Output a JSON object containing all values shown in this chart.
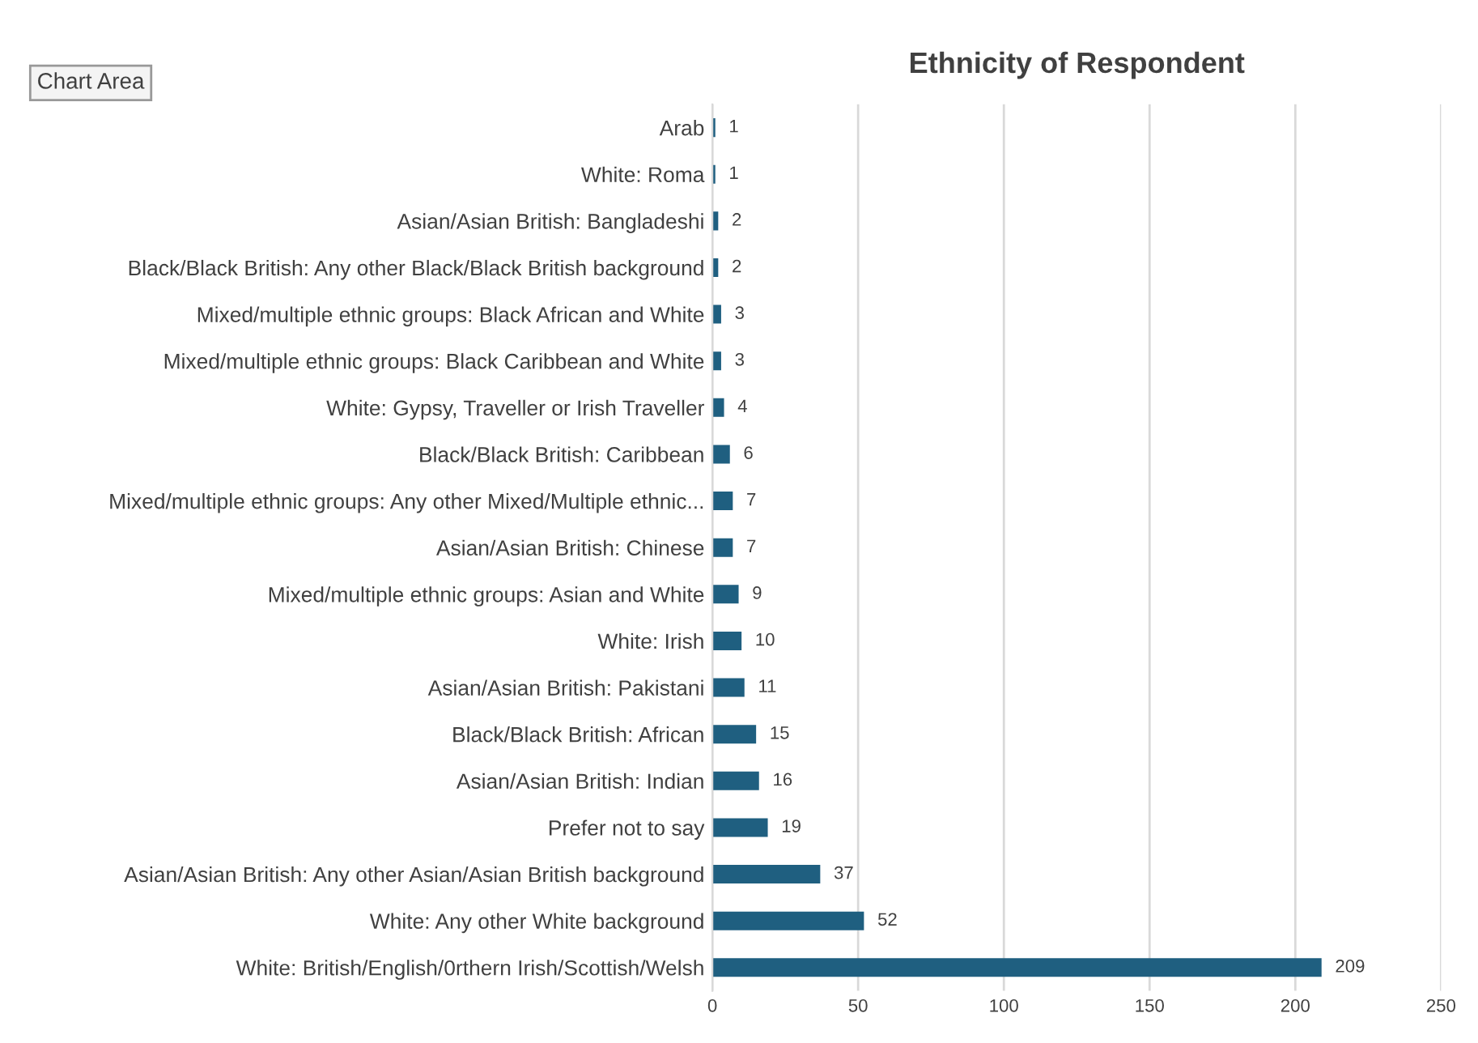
{
  "chart_data": {
    "type": "bar",
    "orientation": "horizontal",
    "title": "Ethnicity of Respondent",
    "categories": [
      "Arab",
      "White: Roma",
      "Asian/Asian British: Bangladeshi",
      "Black/Black British: Any other Black/Black British background",
      "Mixed/multiple ethnic groups: Black African and White",
      "Mixed/multiple ethnic groups: Black Caribbean and White",
      "White: Gypsy, Traveller or Irish Traveller",
      "Black/Black British: Caribbean",
      "Mixed/multiple ethnic groups: Any other Mixed/Multiple ethnic...",
      "Asian/Asian British: Chinese",
      "Mixed/multiple ethnic groups: Asian and White",
      "White: Irish",
      "Asian/Asian British: Pakistani",
      "Black/Black British: African",
      "Asian/Asian British: Indian",
      "Prefer not to say",
      "Asian/Asian British: Any other Asian/Asian British background",
      "White: Any other White background",
      "White: British/English/0rthern Irish/Scottish/Welsh"
    ],
    "values": [
      1,
      1,
      2,
      2,
      3,
      3,
      4,
      6,
      7,
      7,
      9,
      10,
      11,
      15,
      16,
      19,
      37,
      52,
      209
    ],
    "color": "#1f5f80",
    "xlim": [
      0,
      250
    ],
    "xticks": [
      0,
      50,
      100,
      150,
      200,
      250
    ],
    "grid": "x",
    "data_labels": true,
    "annotations": [
      "Chart Area"
    ]
  }
}
